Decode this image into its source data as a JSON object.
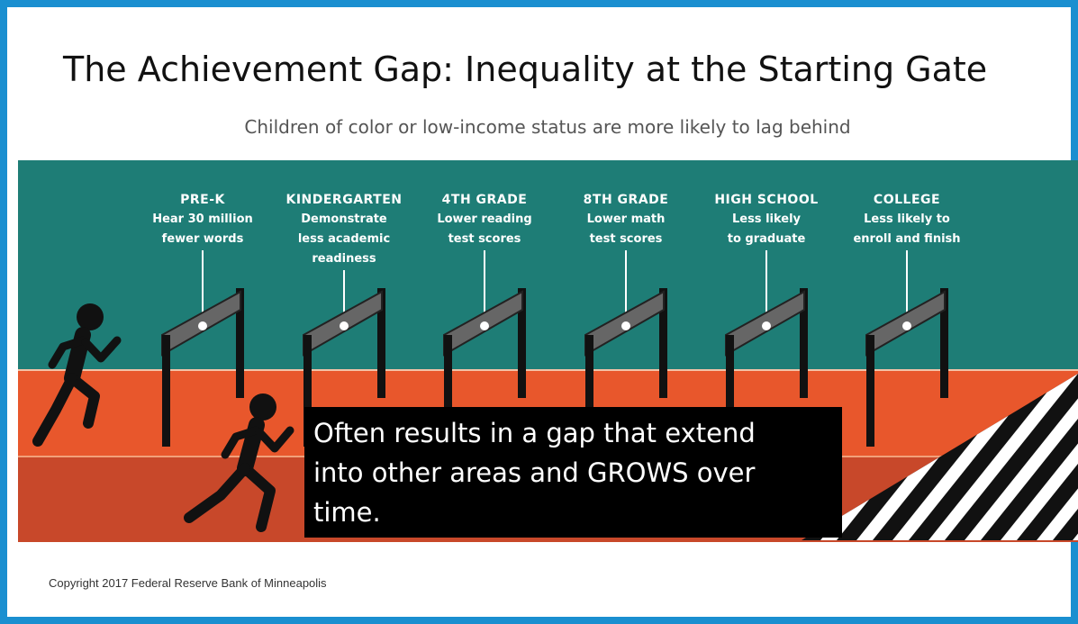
{
  "title": "The Achievement Gap:  Inequality at the Starting Gate",
  "subtitle": "Children of color or low-income status are more likely to lag behind",
  "stages": [
    {
      "heading": "PRE-K",
      "lines": [
        "Hear 30 million",
        "fewer words"
      ]
    },
    {
      "heading": "KINDERGARTEN",
      "lines": [
        "Demonstrate",
        "less academic",
        "readiness"
      ]
    },
    {
      "heading": "4TH GRADE",
      "lines": [
        "Lower reading",
        "test scores"
      ]
    },
    {
      "heading": "8TH GRADE",
      "lines": [
        "Lower math",
        "test scores"
      ]
    },
    {
      "heading": "HIGH SCHOOL",
      "lines": [
        "Less likely",
        "to graduate"
      ]
    },
    {
      "heading": "COLLEGE",
      "lines": [
        "Less likely to",
        "enroll and finish"
      ]
    }
  ],
  "callout": [
    "Often results in a gap that extend",
    "into other areas and GROWS over",
    "time."
  ],
  "copyright": "Copyright 2017 Federal Reserve Bank of Minneapolis"
}
